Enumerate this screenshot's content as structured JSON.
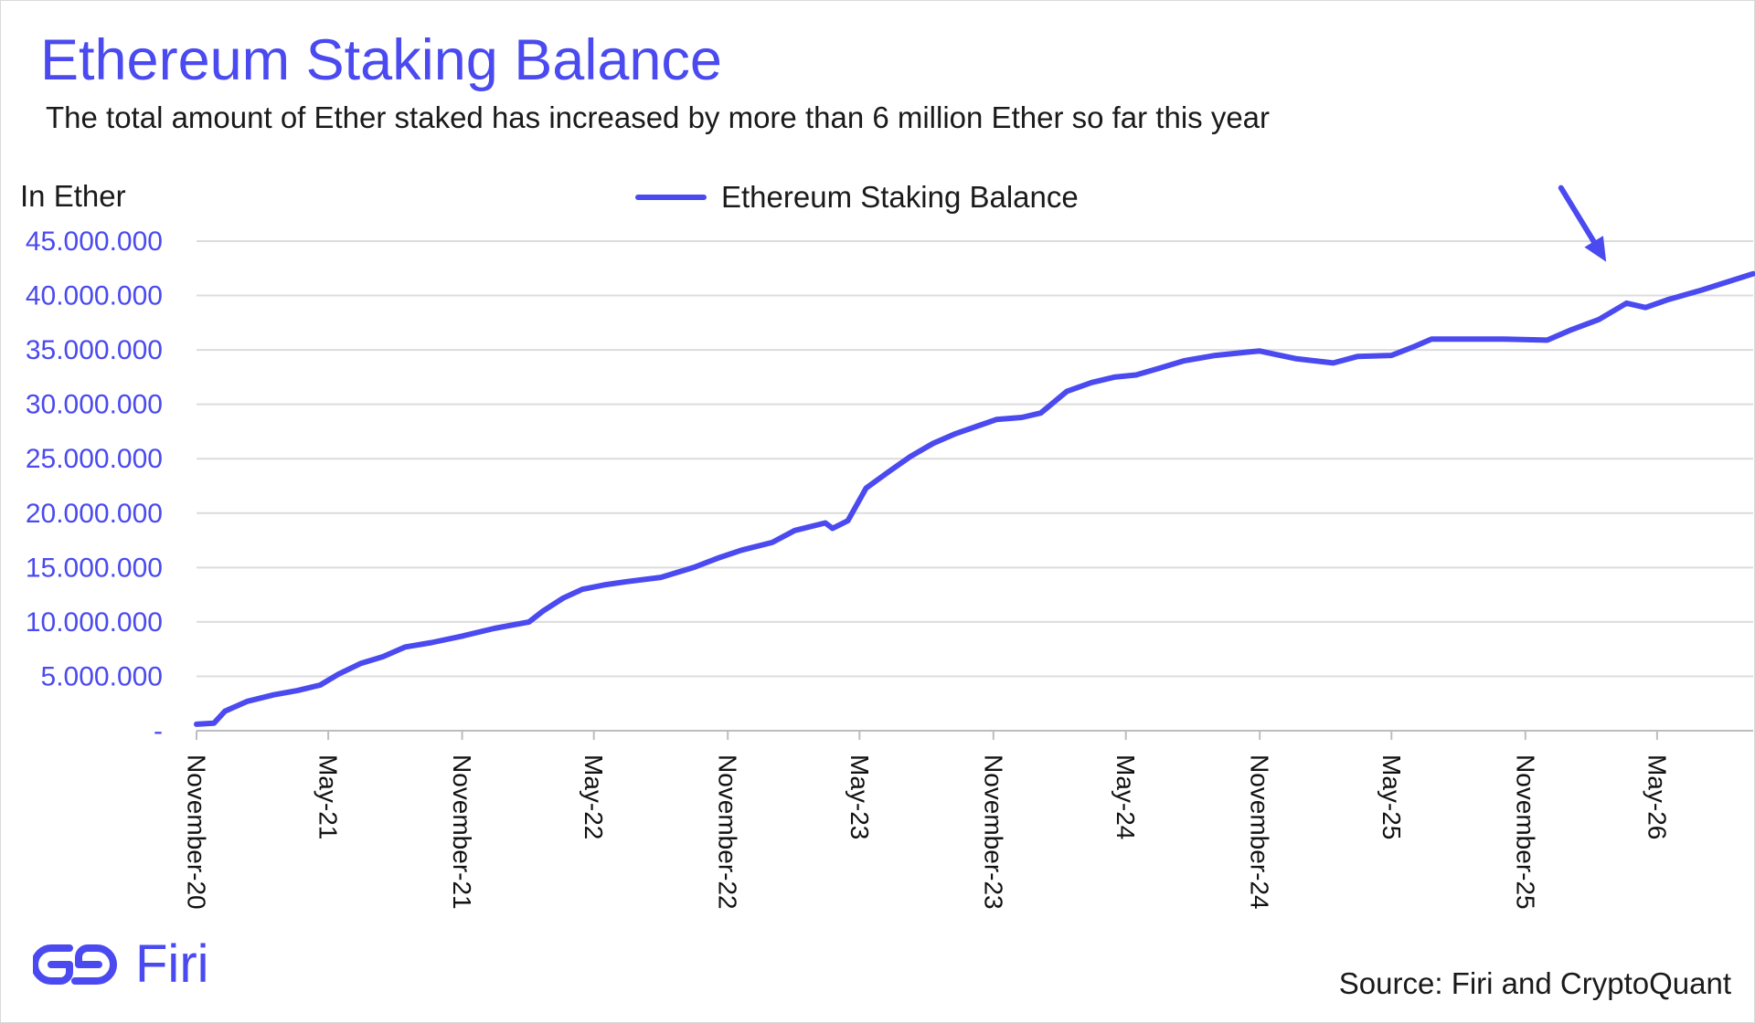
{
  "chart_data": {
    "type": "line",
    "title": "Ethereum Staking Balance",
    "subtitle": "The total amount of Ether staked has increased by more than 6 million Ether so far this year",
    "ylabel": "In Ether",
    "xlabel": "",
    "ylim": [
      0,
      45000000
    ],
    "y_ticks": [
      {
        "value": 0,
        "label": "-"
      },
      {
        "value": 5000000,
        "label": "5.000.000"
      },
      {
        "value": 10000000,
        "label": "10.000.000"
      },
      {
        "value": 15000000,
        "label": "15.000.000"
      },
      {
        "value": 20000000,
        "label": "20.000.000"
      },
      {
        "value": 25000000,
        "label": "25.000.000"
      },
      {
        "value": 30000000,
        "label": "30.000.000"
      },
      {
        "value": 35000000,
        "label": "35.000.000"
      },
      {
        "value": 40000000,
        "label": "40.000.000"
      },
      {
        "value": 45000000,
        "label": "45.000.000"
      }
    ],
    "x_ticks": [
      {
        "date": "2020-11-01",
        "label": "November-20"
      },
      {
        "date": "2021-05-01",
        "label": "May-21"
      },
      {
        "date": "2021-11-01",
        "label": "November-21"
      },
      {
        "date": "2022-05-01",
        "label": "May-22"
      },
      {
        "date": "2022-11-01",
        "label": "November-22"
      },
      {
        "date": "2023-05-01",
        "label": "May-23"
      },
      {
        "date": "2023-11-01",
        "label": "November-23"
      },
      {
        "date": "2024-05-01",
        "label": "May-24"
      },
      {
        "date": "2024-11-01",
        "label": "November-24"
      },
      {
        "date": "2025-05-01",
        "label": "May-25"
      },
      {
        "date": "2025-11-01",
        "label": "November-25"
      },
      {
        "date": "2026-05-01",
        "label": "May-26"
      }
    ],
    "xlim": [
      "2020-11-01",
      "2026-09-10"
    ],
    "grid": true,
    "legend_position": "top-center",
    "series": [
      {
        "name": "Ethereum Staking Balance",
        "color": "#4a4af0",
        "points": [
          [
            "2020-11-01",
            600000
          ],
          [
            "2020-11-25",
            700000
          ],
          [
            "2020-12-10",
            1800000
          ],
          [
            "2021-01-10",
            2700000
          ],
          [
            "2021-02-15",
            3300000
          ],
          [
            "2021-03-20",
            3700000
          ],
          [
            "2021-04-20",
            4200000
          ],
          [
            "2021-05-15",
            5200000
          ],
          [
            "2021-06-15",
            6200000
          ],
          [
            "2021-07-15",
            6800000
          ],
          [
            "2021-08-15",
            7700000
          ],
          [
            "2021-09-20",
            8100000
          ],
          [
            "2021-11-01",
            8700000
          ],
          [
            "2021-12-15",
            9400000
          ],
          [
            "2022-02-01",
            10000000
          ],
          [
            "2022-02-20",
            11000000
          ],
          [
            "2022-03-20",
            12200000
          ],
          [
            "2022-04-15",
            13000000
          ],
          [
            "2022-05-15",
            13400000
          ],
          [
            "2022-06-15",
            13700000
          ],
          [
            "2022-08-01",
            14100000
          ],
          [
            "2022-09-15",
            15000000
          ],
          [
            "2022-10-20",
            15900000
          ],
          [
            "2022-11-20",
            16600000
          ],
          [
            "2023-01-01",
            17300000
          ],
          [
            "2023-02-01",
            18400000
          ],
          [
            "2023-03-15",
            19100000
          ],
          [
            "2023-03-25",
            18600000
          ],
          [
            "2023-04-15",
            19300000
          ],
          [
            "2023-05-10",
            22300000
          ],
          [
            "2023-06-10",
            23800000
          ],
          [
            "2023-07-10",
            25200000
          ],
          [
            "2023-08-10",
            26400000
          ],
          [
            "2023-09-10",
            27300000
          ],
          [
            "2023-10-10",
            28000000
          ],
          [
            "2023-11-05",
            28600000
          ],
          [
            "2023-12-10",
            28800000
          ],
          [
            "2024-01-05",
            29200000
          ],
          [
            "2024-02-10",
            31200000
          ],
          [
            "2024-03-15",
            32000000
          ],
          [
            "2024-04-15",
            32500000
          ],
          [
            "2024-05-15",
            32700000
          ],
          [
            "2024-06-15",
            33300000
          ],
          [
            "2024-07-20",
            34000000
          ],
          [
            "2024-09-01",
            34500000
          ],
          [
            "2024-10-15",
            34800000
          ],
          [
            "2024-11-01",
            34900000
          ],
          [
            "2024-11-15",
            34700000
          ],
          [
            "2024-12-20",
            34200000
          ],
          [
            "2025-02-10",
            33800000
          ],
          [
            "2025-03-15",
            34400000
          ],
          [
            "2025-05-01",
            34500000
          ],
          [
            "2025-06-01",
            35300000
          ],
          [
            "2025-06-25",
            36000000
          ],
          [
            "2025-08-01",
            36000000
          ],
          [
            "2025-10-01",
            36000000
          ],
          [
            "2025-12-01",
            35900000
          ],
          [
            "2026-01-01",
            36800000
          ],
          [
            "2026-02-10",
            37800000
          ],
          [
            "2026-03-20",
            39300000
          ],
          [
            "2026-04-15",
            38900000
          ],
          [
            "2026-05-15",
            39600000
          ],
          [
            "2026-07-01",
            40500000
          ],
          [
            "2026-09-10",
            42000000
          ]
        ]
      }
    ],
    "annotations": [
      {
        "type": "arrow",
        "color": "#4a4af0",
        "from": [
          "2025-12-20",
          49900000
        ],
        "to": [
          "2026-02-20",
          43100000
        ]
      }
    ],
    "source": "Source: Firi and CryptoQuant"
  },
  "brand": {
    "logo_text": "Firi",
    "color": "#4a4af0"
  }
}
